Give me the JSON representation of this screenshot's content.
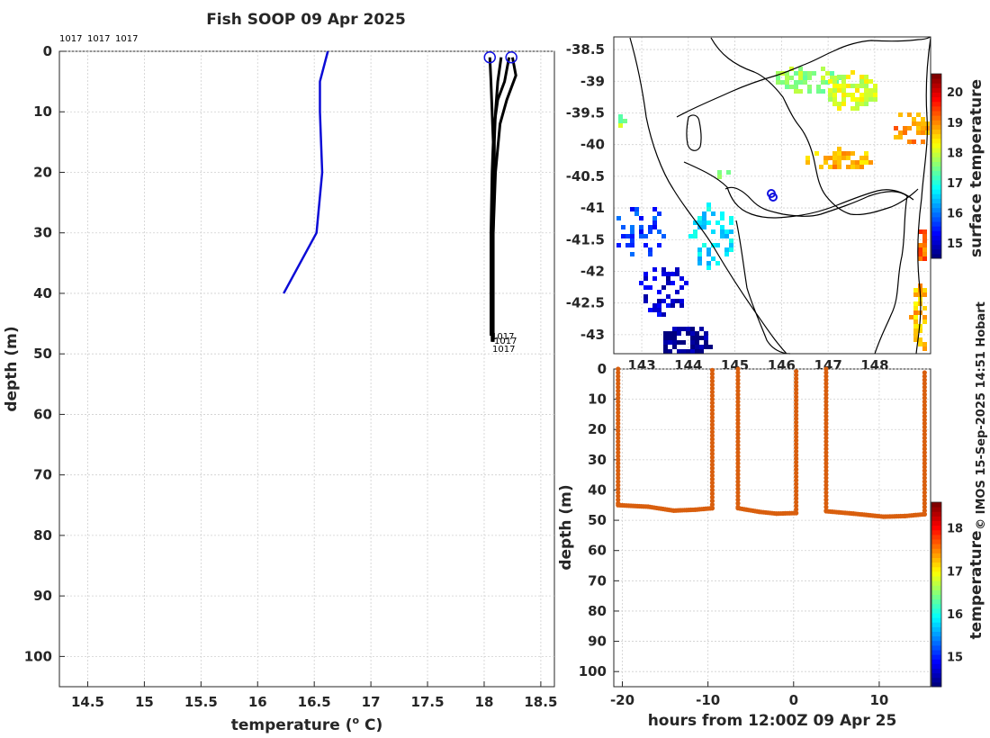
{
  "title": "Fish SOOP 09 Apr 2025",
  "credit": "© IMOS 15-Sep-2025 14:51 Hobart",
  "colors": {
    "profile_blue": "#0b0bd6",
    "profile_black": "#000000",
    "track_orange": "#d95f0e",
    "coast": "#000000"
  },
  "chart_data": [
    {
      "type": "line",
      "name": "temperature-profile",
      "xlabel": "temperature (",
      "xlabel_sup": "o",
      "xlabel_end": " C)",
      "ylabel": "depth (m)",
      "xlim": [
        14.25,
        18.62
      ],
      "ylim": [
        105,
        0
      ],
      "xticks": [
        "14.5",
        "15",
        "15.5",
        "16",
        "16.5",
        "17",
        "17.5",
        "18",
        "18.5"
      ],
      "yticks": [
        "0",
        "10",
        "20",
        "30",
        "40",
        "50",
        "60",
        "70",
        "80",
        "90",
        "100"
      ],
      "top_labels": [
        "1017",
        "1017",
        "1017"
      ],
      "end_labels": [
        "1017",
        "1017",
        "1017"
      ],
      "series": [
        {
          "name": "blue",
          "x": [
            16.62,
            16.55,
            16.55,
            16.57,
            16.52,
            16.23
          ],
          "y": [
            0,
            5,
            10,
            20,
            30,
            40
          ]
        },
        {
          "name": "black-1",
          "x": [
            18.05,
            18.06,
            18.07,
            18.08,
            18.07,
            18.06,
            18.06,
            18.06,
            18.06
          ],
          "y": [
            1,
            5,
            10,
            15,
            20,
            30,
            40,
            45,
            47
          ]
        },
        {
          "name": "black-2",
          "x": [
            18.22,
            18.18,
            18.12,
            18.09,
            18.08,
            18.07,
            18.07,
            18.07,
            18.07
          ],
          "y": [
            1,
            5,
            8,
            12,
            20,
            30,
            40,
            46,
            48
          ]
        },
        {
          "name": "black-3",
          "x": [
            18.25,
            18.28,
            18.2,
            18.14,
            18.1,
            18.08,
            18.08,
            18.08,
            18.08
          ],
          "y": [
            1,
            4,
            8,
            12,
            20,
            30,
            40,
            45,
            48
          ]
        },
        {
          "name": "black-4",
          "x": [
            18.15,
            18.12,
            18.1,
            18.09,
            18.09,
            18.08,
            18.08,
            18.08,
            18.08
          ],
          "y": [
            1,
            5,
            10,
            15,
            20,
            30,
            40,
            45,
            48
          ]
        }
      ],
      "markers": [
        {
          "x": 18.05,
          "y": 1
        },
        {
          "x": 18.24,
          "y": 1
        }
      ]
    },
    {
      "type": "heatmap",
      "name": "sst-map",
      "colorbar_label": "surface temperature",
      "yticks": [
        "-38.5",
        "-39",
        "-39.5",
        "-40",
        "-40.5",
        "-41",
        "-41.5",
        "-42",
        "-42.5",
        "-43"
      ],
      "xticks": [
        "143",
        "144",
        "145",
        "146",
        "147",
        "148"
      ],
      "xlim": [
        142.4,
        149.2
      ],
      "ylim": [
        -43.3,
        -38.3
      ],
      "colorbar_ticks": [
        "15",
        "16",
        "17",
        "18",
        "19",
        "20"
      ],
      "colorbar_range": [
        14.5,
        20.6
      ],
      "position_marker": {
        "lon": 145.7,
        "lat": -40.8
      }
    },
    {
      "type": "scatter",
      "name": "depth-time-track",
      "xlabel": "hours from 12:00Z 09 Apr 25",
      "ylabel": "depth (m)",
      "xlim": [
        -21,
        16
      ],
      "ylim": [
        105,
        0
      ],
      "xticks": [
        "-20",
        "-10",
        "0",
        "10"
      ],
      "yticks": [
        "0",
        "10",
        "20",
        "30",
        "40",
        "50",
        "60",
        "70",
        "80",
        "90",
        "100"
      ],
      "colorbar_label": "temperature",
      "colorbar_ticks": [
        "15",
        "16",
        "17",
        "18"
      ],
      "colorbar_range": [
        14.3,
        18.6
      ],
      "segments": [
        {
          "descent": [
            -20.5,
            0,
            45
          ],
          "bottom": [
            [
              -20.5,
              45
            ],
            [
              -17,
              45.5
            ],
            [
              -14,
              46.8
            ],
            [
              -11.5,
              46.5
            ],
            [
              -9.5,
              46
            ]
          ],
          "ascent": [
            -9.5,
            46,
            0
          ]
        },
        {
          "descent": [
            -6.5,
            0,
            46
          ],
          "bottom": [
            [
              -6.5,
              46
            ],
            [
              -4,
              47.2
            ],
            [
              -2,
              47.8
            ],
            [
              0.3,
              47.6
            ]
          ],
          "ascent": [
            0.3,
            47.6,
            0
          ]
        },
        {
          "descent": [
            3.8,
            0,
            47
          ],
          "bottom": [
            [
              3.8,
              47
            ],
            [
              7,
              47.8
            ],
            [
              10.5,
              48.8
            ],
            [
              13,
              48.6
            ],
            [
              15.3,
              48
            ]
          ],
          "ascent": [
            15.3,
            48,
            0
          ]
        }
      ]
    }
  ]
}
